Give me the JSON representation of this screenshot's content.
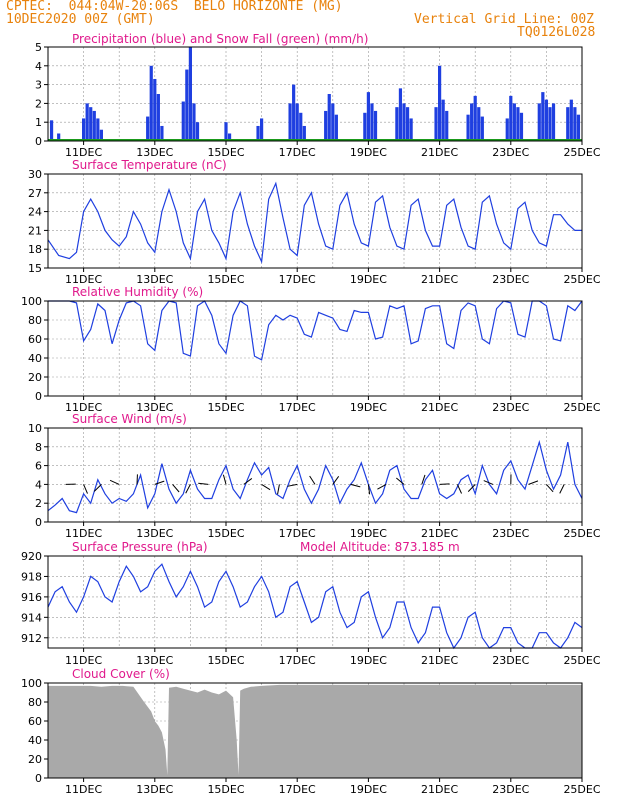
{
  "header": {
    "line1": "CPTEC:  044:04W-20:06S  BELO HORIZONTE (MG)",
    "line2": "10DEC2020 00Z (GMT)",
    "grid_note": "Vertical Grid Line: 00Z",
    "code": "TQ0126L028"
  },
  "colors": {
    "header": "#e8820c",
    "title": "#e0198c",
    "series": "#1f3fe0",
    "snow": "#1a9a1a",
    "cloud": "#a9a9a9",
    "grid": "#9a9a9a"
  },
  "x_axis": {
    "start_day": 10,
    "end_day": 25,
    "ticks": [
      "11DEC",
      "13DEC",
      "15DEC",
      "17DEC",
      "19DEC",
      "21DEC",
      "23DEC",
      "25DEC"
    ],
    "tick_days": [
      11,
      13,
      15,
      17,
      19,
      21,
      23,
      25
    ]
  },
  "chart_data": [
    {
      "type": "bar",
      "title": "Precipitation (blue) and Snow Fall (green) (mm/h)",
      "ylim": [
        0,
        5
      ],
      "yticks": [
        0,
        1,
        2,
        3,
        4,
        5
      ],
      "series": [
        {
          "name": "Precipitation",
          "x": [
            10.1,
            10.3,
            11.0,
            11.1,
            11.2,
            11.3,
            11.4,
            11.5,
            12.8,
            12.9,
            13.0,
            13.1,
            13.2,
            13.8,
            13.9,
            14.0,
            14.1,
            14.2,
            15.0,
            15.1,
            15.9,
            16.0,
            16.8,
            16.9,
            17.0,
            17.1,
            17.2,
            17.8,
            17.9,
            18.0,
            18.1,
            18.9,
            19.0,
            19.1,
            19.2,
            19.8,
            19.9,
            20.0,
            20.1,
            20.2,
            20.9,
            21.0,
            21.1,
            21.2,
            21.8,
            21.9,
            22.0,
            22.1,
            22.2,
            22.9,
            23.0,
            23.1,
            23.2,
            23.3,
            23.8,
            23.9,
            24.0,
            24.1,
            24.2,
            24.6,
            24.7,
            24.8,
            24.9
          ],
          "values": [
            1.1,
            0.4,
            1.2,
            2.0,
            1.8,
            1.6,
            1.2,
            0.6,
            1.3,
            4.0,
            3.3,
            2.5,
            0.8,
            2.1,
            3.8,
            5.0,
            2.0,
            1.0,
            1.0,
            0.4,
            0.8,
            1.2,
            2.0,
            3.0,
            2.0,
            1.5,
            0.8,
            1.6,
            2.5,
            2.0,
            1.4,
            1.5,
            2.6,
            2.0,
            1.6,
            1.8,
            2.8,
            2.0,
            1.8,
            1.2,
            1.8,
            4.0,
            2.2,
            1.6,
            1.4,
            2.0,
            2.4,
            1.8,
            1.3,
            1.2,
            2.4,
            2.0,
            1.8,
            1.5,
            2.0,
            2.6,
            2.2,
            1.8,
            2.0,
            1.8,
            2.2,
            1.8,
            1.4
          ]
        },
        {
          "name": "Snow Fall",
          "x": [],
          "values": []
        }
      ]
    },
    {
      "type": "line",
      "title": "Surface Temperature (nC)",
      "ylim": [
        15,
        30
      ],
      "yticks": [
        15,
        18,
        21,
        24,
        27,
        30
      ],
      "series": [
        {
          "name": "Temperature",
          "x": [
            10.0,
            10.3,
            10.6,
            10.8,
            11.0,
            11.2,
            11.4,
            11.6,
            11.8,
            12.0,
            12.2,
            12.4,
            12.6,
            12.8,
            13.0,
            13.2,
            13.4,
            13.6,
            13.8,
            14.0,
            14.2,
            14.4,
            14.6,
            14.8,
            15.0,
            15.2,
            15.4,
            15.6,
            15.8,
            16.0,
            16.2,
            16.4,
            16.6,
            16.8,
            17.0,
            17.2,
            17.4,
            17.6,
            17.8,
            18.0,
            18.2,
            18.4,
            18.6,
            18.8,
            19.0,
            19.2,
            19.4,
            19.6,
            19.8,
            20.0,
            20.2,
            20.4,
            20.6,
            20.8,
            21.0,
            21.2,
            21.4,
            21.6,
            21.8,
            22.0,
            22.2,
            22.4,
            22.6,
            22.8,
            23.0,
            23.2,
            23.4,
            23.6,
            23.8,
            24.0,
            24.2,
            24.4,
            24.6,
            24.8,
            25.0
          ],
          "values": [
            19.5,
            17.0,
            16.5,
            17.5,
            24.0,
            26.0,
            24.0,
            21.0,
            19.5,
            18.5,
            20.0,
            24.0,
            22.0,
            19.0,
            17.5,
            24.0,
            27.5,
            24.0,
            19.0,
            16.5,
            24.0,
            26.0,
            21.0,
            19.0,
            16.5,
            24.0,
            27.0,
            22.0,
            18.5,
            16.0,
            26.0,
            28.5,
            23.0,
            18.0,
            17.0,
            25.0,
            27.0,
            22.0,
            18.5,
            18.0,
            25.0,
            27.0,
            22.0,
            19.0,
            18.5,
            25.5,
            26.5,
            21.5,
            18.5,
            18.0,
            25.0,
            26.0,
            21.0,
            18.5,
            18.5,
            25.0,
            26.0,
            21.5,
            18.5,
            18.0,
            25.5,
            26.5,
            22.0,
            19.0,
            18.0,
            24.5,
            25.5,
            21.0,
            19.0,
            18.5,
            23.5,
            23.5,
            22.0,
            21.0,
            21.0
          ]
        }
      ]
    },
    {
      "type": "line",
      "title": "Relative Humidity (%)",
      "ylim": [
        0,
        100
      ],
      "yticks": [
        0,
        20,
        40,
        60,
        80,
        100
      ],
      "series": [
        {
          "name": "Humidity",
          "x": [
            10.0,
            10.3,
            10.6,
            10.8,
            11.0,
            11.2,
            11.4,
            11.6,
            11.8,
            12.0,
            12.2,
            12.4,
            12.6,
            12.8,
            13.0,
            13.2,
            13.4,
            13.6,
            13.8,
            14.0,
            14.2,
            14.4,
            14.6,
            14.8,
            15.0,
            15.2,
            15.4,
            15.6,
            15.8,
            16.0,
            16.2,
            16.4,
            16.6,
            16.8,
            17.0,
            17.2,
            17.4,
            17.6,
            17.8,
            18.0,
            18.2,
            18.4,
            18.6,
            18.8,
            19.0,
            19.2,
            19.4,
            19.6,
            19.8,
            20.0,
            20.2,
            20.4,
            20.6,
            20.8,
            21.0,
            21.2,
            21.4,
            21.6,
            21.8,
            22.0,
            22.2,
            22.4,
            22.6,
            22.8,
            23.0,
            23.2,
            23.4,
            23.6,
            23.8,
            24.0,
            24.2,
            24.4,
            24.6,
            24.8,
            25.0
          ],
          "values": [
            100,
            100,
            100,
            98,
            58,
            70,
            97,
            90,
            55,
            80,
            98,
            100,
            95,
            55,
            48,
            90,
            100,
            98,
            45,
            42,
            95,
            100,
            85,
            55,
            45,
            85,
            100,
            95,
            42,
            38,
            75,
            85,
            80,
            85,
            82,
            65,
            62,
            88,
            85,
            82,
            70,
            68,
            90,
            88,
            88,
            60,
            62,
            95,
            92,
            95,
            55,
            58,
            92,
            95,
            95,
            55,
            50,
            90,
            98,
            95,
            60,
            55,
            92,
            100,
            98,
            65,
            62,
            100,
            100,
            95,
            60,
            58,
            95,
            90,
            100
          ]
        }
      ]
    },
    {
      "type": "line",
      "title": "Surface Wind (m/s)",
      "ylim": [
        0,
        10
      ],
      "yticks": [
        0,
        2,
        4,
        6,
        8,
        10
      ],
      "series": [
        {
          "name": "Wind speed",
          "x": [
            10.0,
            10.2,
            10.4,
            10.6,
            10.8,
            11.0,
            11.2,
            11.4,
            11.6,
            11.8,
            12.0,
            12.2,
            12.4,
            12.6,
            12.8,
            13.0,
            13.2,
            13.4,
            13.6,
            13.8,
            14.0,
            14.2,
            14.4,
            14.6,
            14.8,
            15.0,
            15.2,
            15.4,
            15.6,
            15.8,
            16.0,
            16.2,
            16.4,
            16.6,
            16.8,
            17.0,
            17.2,
            17.4,
            17.6,
            17.8,
            18.0,
            18.2,
            18.4,
            18.6,
            18.8,
            19.0,
            19.2,
            19.4,
            19.6,
            19.8,
            20.0,
            20.2,
            20.4,
            20.6,
            20.8,
            21.0,
            21.2,
            21.4,
            21.6,
            21.8,
            22.0,
            22.2,
            22.4,
            22.6,
            22.8,
            23.0,
            23.2,
            23.4,
            23.6,
            23.8,
            24.0,
            24.2,
            24.4,
            24.6,
            24.8,
            25.0
          ],
          "values": [
            1.2,
            1.8,
            2.5,
            1.2,
            1.0,
            3.0,
            2.0,
            4.5,
            3.0,
            2.0,
            2.5,
            2.2,
            3.0,
            5.0,
            1.5,
            3.0,
            6.2,
            3.5,
            2.0,
            3.0,
            5.5,
            3.5,
            2.5,
            2.5,
            4.5,
            6.0,
            3.5,
            2.5,
            4.5,
            6.3,
            5.0,
            5.8,
            3.0,
            2.5,
            4.5,
            6.0,
            3.5,
            2.0,
            3.5,
            6.0,
            4.5,
            2.0,
            3.5,
            4.5,
            6.3,
            4.0,
            2.0,
            3.0,
            5.5,
            6.0,
            3.5,
            2.5,
            2.5,
            4.5,
            5.5,
            3.0,
            2.5,
            3.0,
            4.5,
            5.0,
            3.0,
            6.0,
            4.0,
            3.0,
            5.5,
            6.5,
            4.5,
            3.5,
            6.0,
            8.5,
            5.5,
            3.5,
            5.0,
            8.5,
            4.0,
            2.5
          ]
        }
      ]
    },
    {
      "type": "line",
      "title": "Surface Pressure (hPa)",
      "annotation": "Model Altitude: 873.185  m",
      "ylim": [
        911,
        920
      ],
      "yticks": [
        912,
        914,
        916,
        918,
        920
      ],
      "series": [
        {
          "name": "Pressure",
          "x": [
            10.0,
            10.2,
            10.4,
            10.6,
            10.8,
            11.0,
            11.2,
            11.4,
            11.6,
            11.8,
            12.0,
            12.2,
            12.4,
            12.6,
            12.8,
            13.0,
            13.2,
            13.4,
            13.6,
            13.8,
            14.0,
            14.2,
            14.4,
            14.6,
            14.8,
            15.0,
            15.2,
            15.4,
            15.6,
            15.8,
            16.0,
            16.2,
            16.4,
            16.6,
            16.8,
            17.0,
            17.2,
            17.4,
            17.6,
            17.8,
            18.0,
            18.2,
            18.4,
            18.6,
            18.8,
            19.0,
            19.2,
            19.4,
            19.6,
            19.8,
            20.0,
            20.2,
            20.4,
            20.6,
            20.8,
            21.0,
            21.2,
            21.4,
            21.6,
            21.8,
            22.0,
            22.2,
            22.4,
            22.6,
            22.8,
            23.0,
            23.2,
            23.4,
            23.6,
            23.8,
            24.0,
            24.2,
            24.4,
            24.6,
            24.8,
            25.0
          ],
          "values": [
            915.0,
            916.5,
            917.0,
            915.5,
            914.5,
            916.0,
            918.0,
            917.5,
            916.0,
            915.5,
            917.5,
            919.0,
            918.0,
            916.5,
            917.0,
            918.5,
            919.2,
            917.5,
            916.0,
            917.0,
            918.5,
            917.0,
            915.0,
            915.5,
            917.5,
            918.5,
            917.0,
            915.0,
            915.5,
            917.0,
            918.0,
            916.5,
            914.0,
            914.5,
            917.0,
            917.5,
            915.5,
            913.5,
            914.0,
            916.5,
            917.0,
            914.5,
            913.0,
            913.5,
            916.0,
            916.5,
            914.0,
            912.0,
            913.0,
            915.5,
            915.5,
            913.0,
            911.5,
            912.5,
            915.0,
            915.0,
            912.5,
            911.0,
            912.0,
            914.0,
            914.5,
            912.0,
            911.0,
            911.5,
            913.0,
            913.0,
            911.5,
            911.0,
            911.0,
            912.5,
            912.5,
            911.5,
            911.0,
            912.0,
            913.5,
            913.0
          ]
        }
      ]
    },
    {
      "type": "area",
      "title": "Cloud Cover (%)",
      "ylim": [
        0,
        100
      ],
      "yticks": [
        0,
        20,
        40,
        60,
        80,
        100
      ],
      "series": [
        {
          "name": "Cloud cover",
          "x": [
            10.0,
            10.3,
            10.6,
            10.9,
            11.2,
            11.5,
            11.8,
            12.1,
            12.4,
            12.7,
            12.9,
            13.0,
            13.1,
            13.2,
            13.3,
            13.35,
            13.4,
            13.6,
            13.8,
            14.0,
            14.2,
            14.4,
            14.6,
            14.8,
            15.0,
            15.2,
            15.3,
            15.35,
            15.4,
            15.5,
            15.7,
            16.0,
            16.5,
            17.0,
            17.5,
            18.0,
            18.5,
            19.0,
            19.5,
            20.0,
            20.5,
            21.0,
            21.5,
            22.0,
            22.5,
            23.0,
            23.5,
            24.0,
            24.5,
            25.0
          ],
          "values": [
            97,
            97,
            97,
            97,
            97,
            96,
            97,
            97,
            96,
            80,
            70,
            60,
            55,
            48,
            30,
            3,
            95,
            96,
            94,
            92,
            90,
            93,
            90,
            88,
            92,
            85,
            40,
            3,
            92,
            94,
            96,
            97,
            98,
            98,
            98,
            98,
            98,
            98,
            98,
            98,
            98,
            98,
            98,
            98,
            98,
            98,
            98,
            98,
            98,
            98
          ]
        }
      ]
    }
  ]
}
